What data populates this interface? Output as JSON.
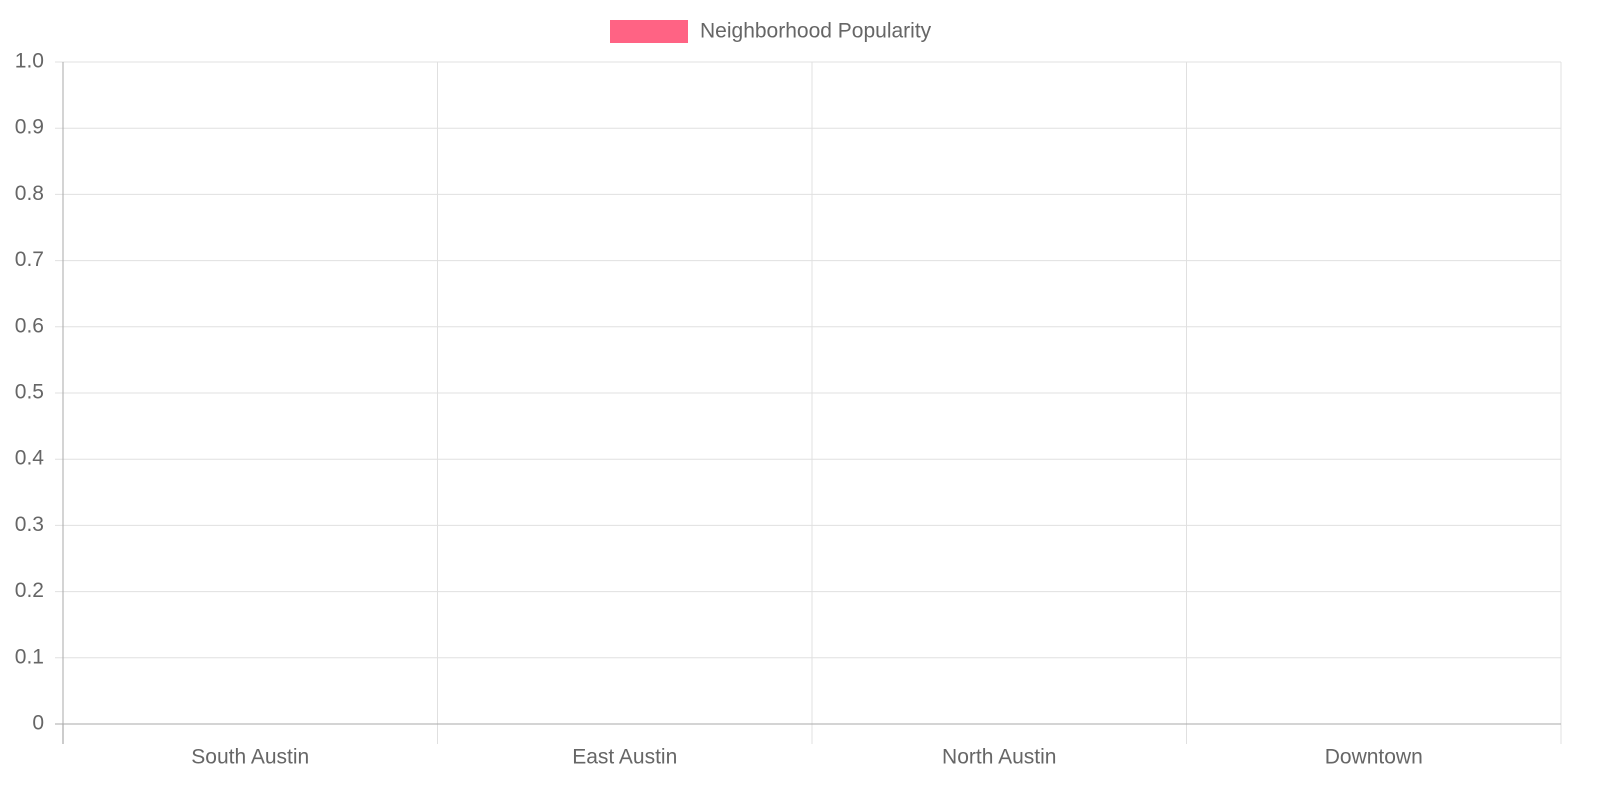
{
  "chart_data": {
    "type": "bar",
    "categories": [
      "South Austin",
      "East Austin",
      "North Austin",
      "Downtown"
    ],
    "series": [
      {
        "name": "Neighborhood Popularity",
        "color": "#ff6384",
        "values": [
          0,
          0,
          0,
          0
        ]
      }
    ],
    "ylim": [
      0,
      1
    ],
    "yticks": [
      0,
      0.1,
      0.2,
      0.3,
      0.4,
      0.5,
      0.6,
      0.7,
      0.8,
      0.9,
      {
        "value": 1,
        "label": "1.0"
      }
    ],
    "grid": true,
    "legend": "top"
  }
}
